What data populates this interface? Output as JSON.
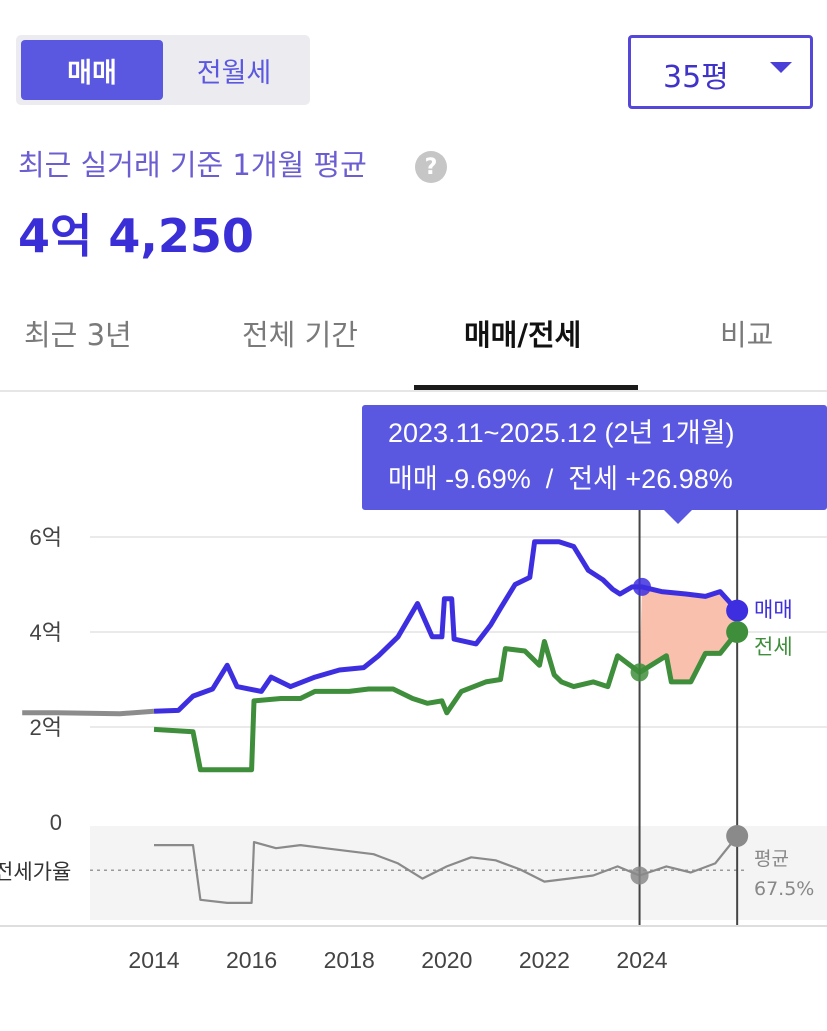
{
  "segment": {
    "items": [
      "매매",
      "전월세"
    ],
    "selected": "매매"
  },
  "size_select": {
    "value": "35평"
  },
  "summary": {
    "basis_label": "최근 실거래 기준 1개월 평균",
    "help_icon": "question-circle-icon",
    "price": "4억 4,250"
  },
  "tabs": [
    "최근 3년",
    "전체 기간",
    "매매/전세",
    "비교"
  ],
  "active_tab": "매매/전세",
  "tooltip": {
    "period": "2023.11~2025.12 (2년 1개월)",
    "change": "매매 -9.69%  /  전세 +26.98%"
  },
  "series_labels": {
    "sale": "매매",
    "jeonse": "전세"
  },
  "ratio_panel": {
    "label": "전세가율",
    "avg_label": "평균",
    "avg_value": "67.5%"
  },
  "colors": {
    "accent": "#5a57e0",
    "sale": "#3d2fe0",
    "jeonse": "#3e8e3b",
    "ratio": "#8c8c8c",
    "fill": "#f9c0ad"
  },
  "chart_data": {
    "type": "line",
    "x_unit": "year",
    "x_ticks": [
      2014,
      2016,
      2018,
      2020,
      2022,
      2024
    ],
    "x_range": [
      2011.3,
      2026.7
    ],
    "y_ticks": [
      {
        "value": 0,
        "label": "0"
      },
      {
        "value": 2,
        "label": "2억"
      },
      {
        "value": 4,
        "label": "4억"
      },
      {
        "value": 6,
        "label": "6억"
      }
    ],
    "y_range": [
      0,
      6.6
    ],
    "y_unit": "억",
    "grid": true,
    "series": [
      {
        "name": "매매",
        "points": [
          [
            2011.3,
            2.3
          ],
          [
            2012.0,
            2.3
          ],
          [
            2013.3,
            2.28
          ],
          [
            2014.0,
            2.33
          ],
          [
            2014.5,
            2.35
          ],
          [
            2014.8,
            2.65
          ],
          [
            2015.2,
            2.8
          ],
          [
            2015.5,
            3.3
          ],
          [
            2015.7,
            2.85
          ],
          [
            2016.2,
            2.75
          ],
          [
            2016.4,
            3.05
          ],
          [
            2016.8,
            2.85
          ],
          [
            2017.3,
            3.05
          ],
          [
            2017.8,
            3.2
          ],
          [
            2018.3,
            3.25
          ],
          [
            2018.6,
            3.5
          ],
          [
            2019.0,
            3.9
          ],
          [
            2019.4,
            4.6
          ],
          [
            2019.7,
            3.9
          ],
          [
            2019.9,
            3.9
          ],
          [
            2019.95,
            4.7
          ],
          [
            2020.1,
            4.7
          ],
          [
            2020.15,
            3.85
          ],
          [
            2020.6,
            3.75
          ],
          [
            2020.9,
            4.15
          ],
          [
            2021.1,
            4.5
          ],
          [
            2021.4,
            5.0
          ],
          [
            2021.7,
            5.15
          ],
          [
            2021.8,
            5.9
          ],
          [
            2022.3,
            5.9
          ],
          [
            2022.6,
            5.8
          ],
          [
            2022.9,
            5.3
          ],
          [
            2023.2,
            5.1
          ],
          [
            2023.4,
            4.9
          ],
          [
            2023.55,
            4.8
          ],
          [
            2023.8,
            4.95
          ],
          [
            2024.0,
            4.95
          ],
          [
            2024.4,
            4.85
          ],
          [
            2024.9,
            4.8
          ],
          [
            2025.3,
            4.75
          ],
          [
            2025.6,
            4.85
          ],
          [
            2025.95,
            4.45
          ]
        ]
      },
      {
        "name": "전세",
        "points": [
          [
            2014.0,
            1.95
          ],
          [
            2014.8,
            1.9
          ],
          [
            2014.95,
            1.1
          ],
          [
            2015.5,
            1.1
          ],
          [
            2016.0,
            1.1
          ],
          [
            2016.05,
            2.55
          ],
          [
            2016.6,
            2.6
          ],
          [
            2017.0,
            2.6
          ],
          [
            2017.3,
            2.75
          ],
          [
            2018.0,
            2.75
          ],
          [
            2018.4,
            2.8
          ],
          [
            2018.9,
            2.8
          ],
          [
            2019.3,
            2.6
          ],
          [
            2019.6,
            2.5
          ],
          [
            2019.9,
            2.55
          ],
          [
            2020.0,
            2.3
          ],
          [
            2020.3,
            2.75
          ],
          [
            2020.8,
            2.95
          ],
          [
            2021.1,
            3.0
          ],
          [
            2021.2,
            3.65
          ],
          [
            2021.6,
            3.6
          ],
          [
            2021.9,
            3.3
          ],
          [
            2022.0,
            3.8
          ],
          [
            2022.2,
            3.1
          ],
          [
            2022.35,
            2.95
          ],
          [
            2022.6,
            2.85
          ],
          [
            2023.0,
            2.95
          ],
          [
            2023.3,
            2.85
          ],
          [
            2023.5,
            3.5
          ],
          [
            2023.95,
            3.15
          ],
          [
            2024.5,
            3.5
          ],
          [
            2024.6,
            2.95
          ],
          [
            2025.0,
            2.95
          ],
          [
            2025.3,
            3.55
          ],
          [
            2025.6,
            3.55
          ],
          [
            2025.95,
            4.0
          ]
        ]
      },
      {
        "name": "전세가율",
        "points": [
          [
            2014.0,
            84
          ],
          [
            2014.8,
            84
          ],
          [
            2014.95,
            48
          ],
          [
            2015.5,
            46
          ],
          [
            2016.0,
            46
          ],
          [
            2016.05,
            86
          ],
          [
            2016.5,
            82
          ],
          [
            2017.0,
            84
          ],
          [
            2017.5,
            82
          ],
          [
            2018.0,
            80
          ],
          [
            2018.5,
            78
          ],
          [
            2019.0,
            72
          ],
          [
            2019.5,
            62
          ],
          [
            2020.0,
            70
          ],
          [
            2020.5,
            76
          ],
          [
            2021.0,
            74
          ],
          [
            2021.5,
            68
          ],
          [
            2022.0,
            60
          ],
          [
            2022.5,
            62
          ],
          [
            2023.0,
            64
          ],
          [
            2023.5,
            70
          ],
          [
            2023.95,
            64
          ],
          [
            2024.5,
            70
          ],
          [
            2025.0,
            66
          ],
          [
            2025.5,
            72
          ],
          [
            2025.95,
            90
          ]
        ],
        "average": 67.5
      }
    ],
    "highlight_range": [
      2023.95,
      2025.95
    ],
    "labels": {
      "avg": "평균",
      "avg_value": "67.5%",
      "ratio_axis": "전세가율"
    }
  }
}
